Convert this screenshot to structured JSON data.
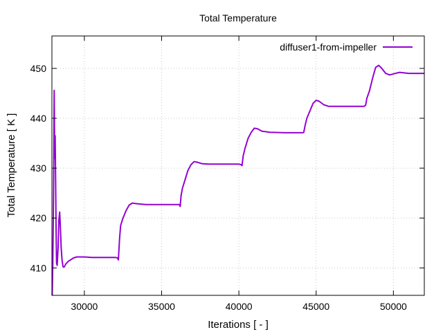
{
  "chart_data": {
    "type": "line",
    "title": "Total Temperature",
    "xlabel": "Iterations [ - ]",
    "ylabel": "Total Temperature [ K ]",
    "xlim": [
      27900,
      52000
    ],
    "ylim": [
      404.5,
      456.5
    ],
    "xticks": [
      30000,
      35000,
      40000,
      45000,
      50000
    ],
    "yticks": [
      410,
      420,
      430,
      440,
      450
    ],
    "grid": true,
    "legend_position": "top-right",
    "series": [
      {
        "name": "diffuser1-from-impeller",
        "color": "#9400d3",
        "points": [
          [
            27920,
            404.5
          ],
          [
            27960,
            411
          ],
          [
            27990,
            420
          ],
          [
            28020,
            432
          ],
          [
            28050,
            445.6
          ],
          [
            28080,
            432
          ],
          [
            28110,
            436.5
          ],
          [
            28140,
            427
          ],
          [
            28170,
            418
          ],
          [
            28200,
            411
          ],
          [
            28240,
            410.5
          ],
          [
            28300,
            414
          ],
          [
            28350,
            419.5
          ],
          [
            28400,
            421.2
          ],
          [
            28450,
            418
          ],
          [
            28500,
            414
          ],
          [
            28560,
            411.5
          ],
          [
            28620,
            410.2
          ],
          [
            28700,
            410.2
          ],
          [
            28800,
            410.8
          ],
          [
            28950,
            411.3
          ],
          [
            29100,
            411.6
          ],
          [
            29300,
            412
          ],
          [
            29500,
            412.2
          ],
          [
            30000,
            412.2
          ],
          [
            30500,
            412.1
          ],
          [
            31000,
            412.1
          ],
          [
            31500,
            412.1
          ],
          [
            32000,
            412.1
          ],
          [
            32150,
            412
          ],
          [
            32200,
            411.6
          ],
          [
            32280,
            416
          ],
          [
            32350,
            418.5
          ],
          [
            32500,
            420
          ],
          [
            32700,
            421.5
          ],
          [
            32900,
            422.6
          ],
          [
            33100,
            423
          ],
          [
            33300,
            422.9
          ],
          [
            33600,
            422.8
          ],
          [
            34000,
            422.7
          ],
          [
            35000,
            422.7
          ],
          [
            36000,
            422.7
          ],
          [
            36150,
            422.7
          ],
          [
            36200,
            422.3
          ],
          [
            36260,
            424.5
          ],
          [
            36350,
            426
          ],
          [
            36500,
            427.5
          ],
          [
            36700,
            429.5
          ],
          [
            36900,
            430.7
          ],
          [
            37100,
            431.3
          ],
          [
            37300,
            431.2
          ],
          [
            37600,
            430.9
          ],
          [
            38000,
            430.8
          ],
          [
            39000,
            430.8
          ],
          [
            40000,
            430.8
          ],
          [
            40150,
            430.7
          ],
          [
            40200,
            430.5
          ],
          [
            40280,
            432.5
          ],
          [
            40400,
            434
          ],
          [
            40600,
            436
          ],
          [
            40800,
            437.2
          ],
          [
            41000,
            438
          ],
          [
            41200,
            437.9
          ],
          [
            41500,
            437.4
          ],
          [
            42000,
            437.2
          ],
          [
            43000,
            437.1
          ],
          [
            44000,
            437.1
          ],
          [
            44150,
            437.1
          ],
          [
            44200,
            437.2
          ],
          [
            44280,
            438.5
          ],
          [
            44400,
            440
          ],
          [
            44600,
            441.5
          ],
          [
            44800,
            443
          ],
          [
            45000,
            443.6
          ],
          [
            45200,
            443.4
          ],
          [
            45500,
            442.7
          ],
          [
            45800,
            442.4
          ],
          [
            46500,
            442.4
          ],
          [
            47500,
            442.4
          ],
          [
            48100,
            442.4
          ],
          [
            48200,
            442.6
          ],
          [
            48280,
            444
          ],
          [
            48450,
            445.5
          ],
          [
            48650,
            448
          ],
          [
            48850,
            450.2
          ],
          [
            49050,
            450.6
          ],
          [
            49250,
            450
          ],
          [
            49500,
            449
          ],
          [
            49750,
            448.7
          ],
          [
            50000,
            448.9
          ],
          [
            50400,
            449.2
          ],
          [
            51000,
            449
          ],
          [
            52000,
            449
          ]
        ]
      }
    ]
  }
}
